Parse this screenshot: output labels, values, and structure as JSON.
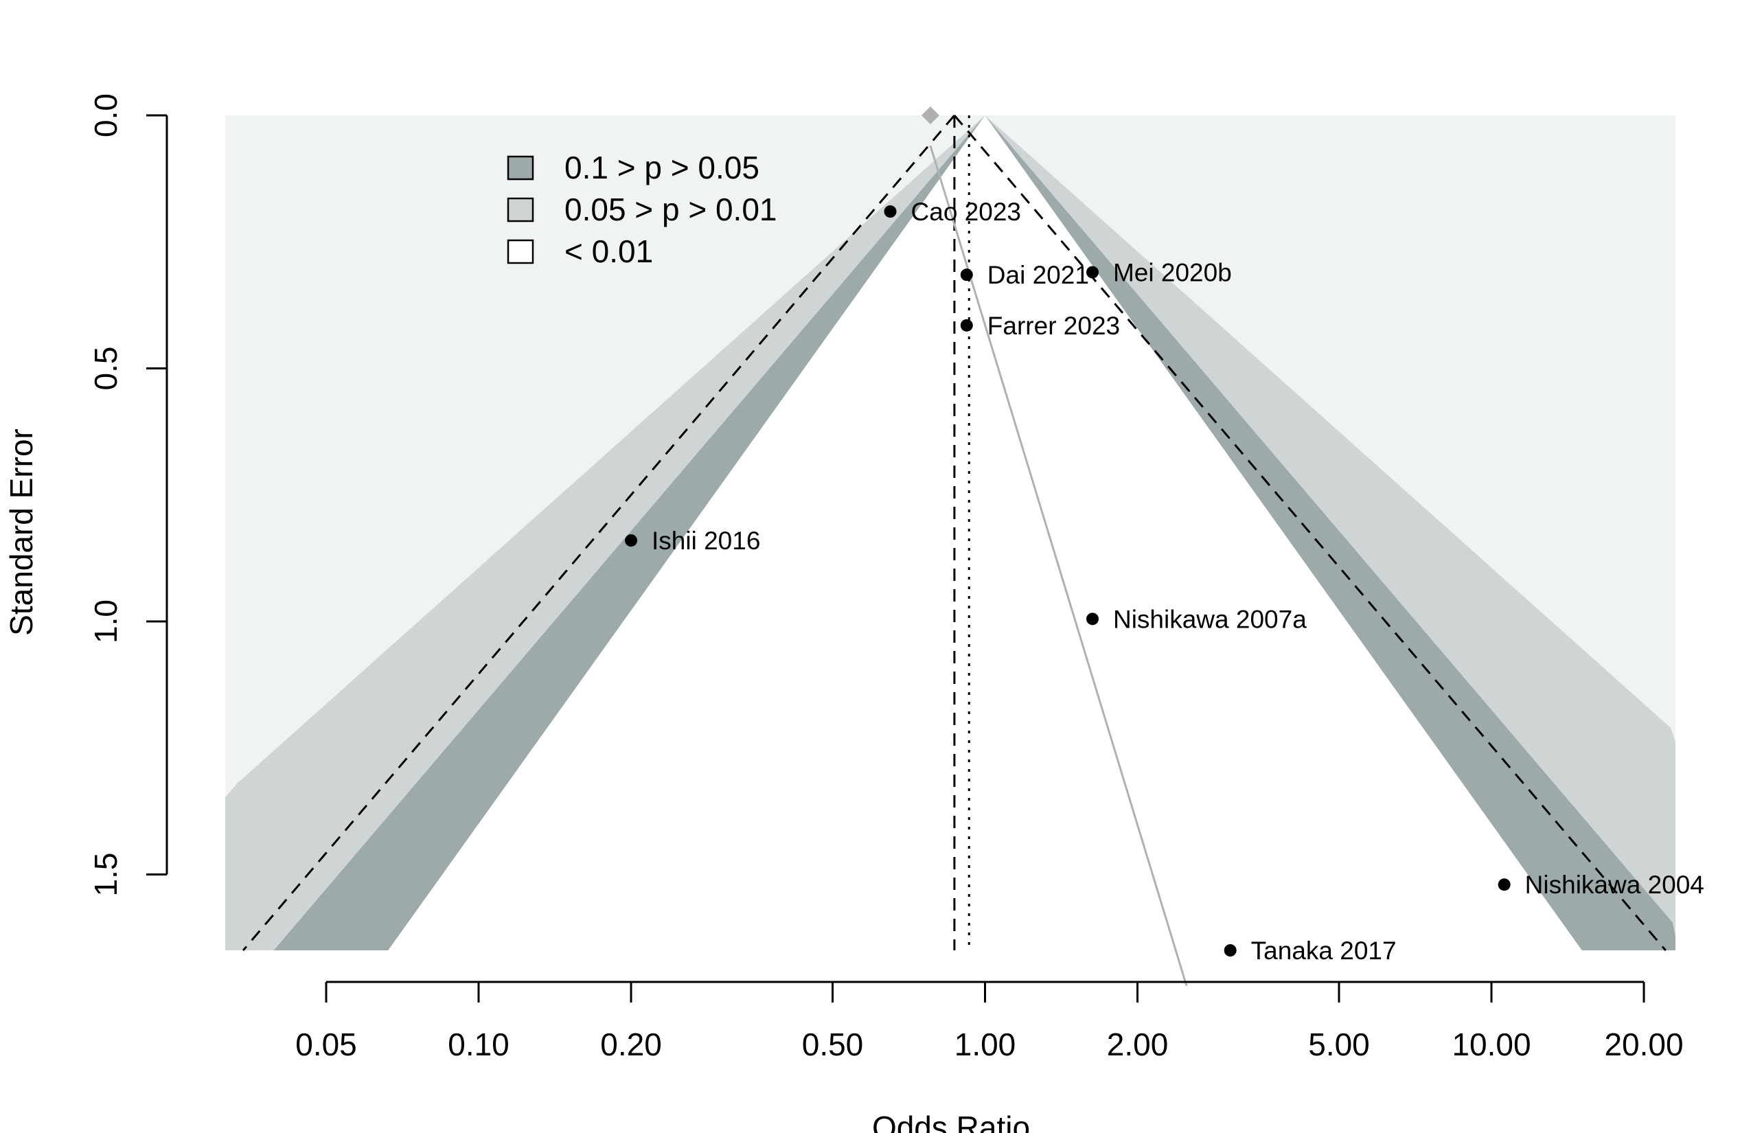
{
  "chart_data": {
    "type": "scatter",
    "subtype": "contour-enhanced funnel plot",
    "title": "",
    "xlabel": "Odds Ratio",
    "ylabel": "Standard Error",
    "x_scale": "log",
    "x_ticks": [
      0.05,
      0.1,
      0.2,
      0.5,
      1,
      2,
      5,
      10,
      20
    ],
    "x_tick_labels": [
      "0.05",
      "0.10",
      "0.20",
      "0.50",
      "1.00",
      "2.00",
      "5.00",
      "10.00",
      "20.00"
    ],
    "xlim": [
      0.035,
      22
    ],
    "y_ticks": [
      0,
      0.5,
      1,
      1.5
    ],
    "y_tick_labels": [
      "0.0",
      "0.5",
      "1.0",
      "1.5"
    ],
    "ylim": [
      0,
      1.65
    ],
    "y_reversed": true,
    "pooled_estimate_or": 0.87,
    "reference_line_or": 0.93,
    "contour_center_or": 1.0,
    "legend": {
      "placement": "top-left",
      "entries": [
        {
          "label": "0.1 > p > 0.05",
          "color": "#9eaaaa"
        },
        {
          "label": "0.05 > p > 0.01",
          "color": "#cfd5d5"
        },
        {
          "label": "< 0.01",
          "color": "#ffffff"
        }
      ]
    },
    "colors": {
      "background_region": "#f0f3f3",
      "outer_band": "#cfd5d5",
      "inner_band": "#9eaaaa",
      "point": "#000000",
      "egger_line": "#b0b0b0",
      "adjusted_marker": "#b0b0b0"
    },
    "egger_line": {
      "or_top": 0.78,
      "or_bottom": 2.5
    },
    "adjusted_estimate_or": 0.78,
    "studies": [
      {
        "label": "Cao 2023",
        "or": 0.65,
        "se": 0.19
      },
      {
        "label": "Dai 2021",
        "or": 0.92,
        "se": 0.315
      },
      {
        "label": "Mei 2020b",
        "or": 1.63,
        "se": 0.31
      },
      {
        "label": "Farrer 2023",
        "or": 0.92,
        "se": 0.415
      },
      {
        "label": "Ishii 2016",
        "or": 0.2,
        "se": 0.84
      },
      {
        "label": "Nishikawa 2007a",
        "or": 1.63,
        "se": 0.995
      },
      {
        "label": "Nishikawa 2004",
        "or": 10.6,
        "se": 1.52
      },
      {
        "label": "Tanaka 2017",
        "or": 3.05,
        "se": 1.65
      }
    ]
  }
}
